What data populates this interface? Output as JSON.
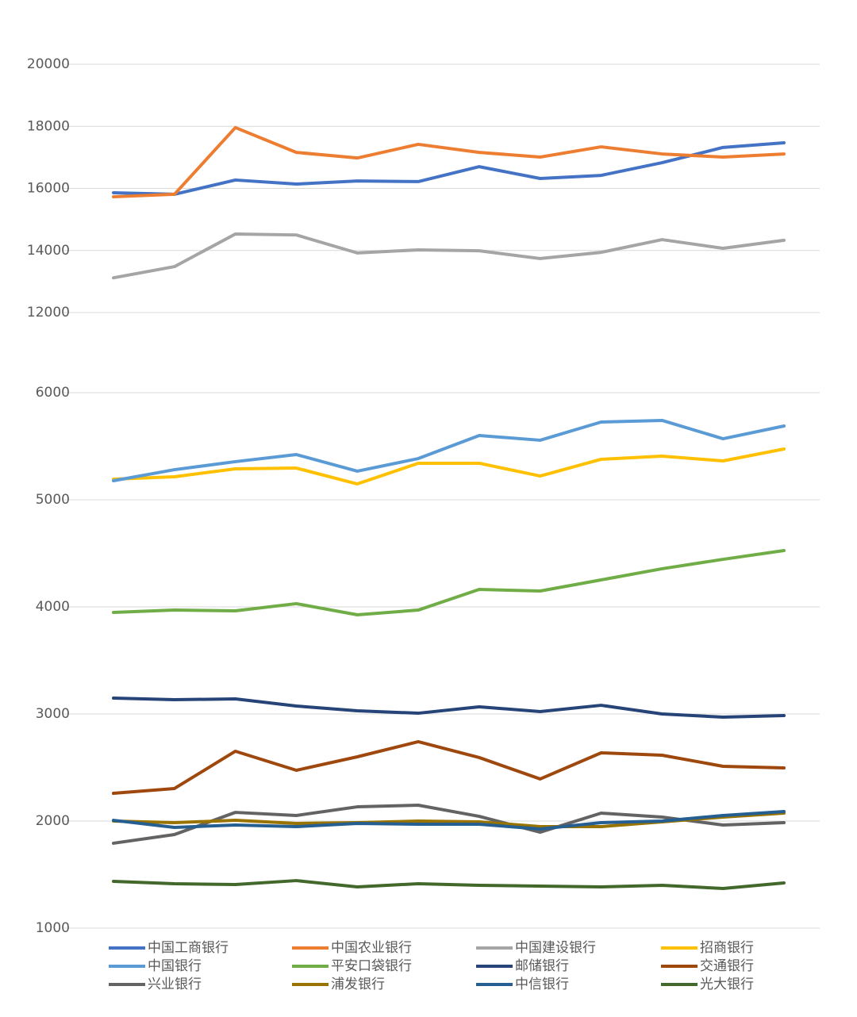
{
  "chart_data": [
    {
      "type": "line",
      "categories": [
        null,
        null,
        null,
        null,
        null,
        null,
        null,
        null,
        null,
        null,
        null,
        null
      ],
      "ylim": [
        12000,
        20000
      ],
      "yticks": [
        12000,
        14000,
        16000,
        18000,
        20000
      ],
      "grid": true,
      "series": [
        {
          "name": "中国工商银行",
          "color": "#4472c4",
          "values": [
            15860,
            15810,
            16270,
            16140,
            16240,
            16220,
            16700,
            16320,
            16420,
            16830,
            17320,
            17470
          ]
        },
        {
          "name": "中国农业银行",
          "color": "#ed7d31",
          "values": [
            15730,
            15810,
            17960,
            17160,
            16980,
            17420,
            17160,
            17010,
            17340,
            17110,
            17010,
            17110
          ]
        },
        {
          "name": "中国建设银行",
          "color": "#a5a5a5",
          "values": [
            13120,
            13480,
            14530,
            14500,
            13920,
            14020,
            13990,
            13740,
            13940,
            14350,
            14070,
            14330
          ]
        }
      ]
    },
    {
      "type": "line",
      "categories": [
        null,
        null,
        null,
        null,
        null,
        null,
        null,
        null,
        null,
        null,
        null,
        null
      ],
      "ylim": [
        1000,
        6000
      ],
      "yticks": [
        1000,
        2000,
        3000,
        4000,
        5000,
        6000
      ],
      "grid": true,
      "series": [
        {
          "name": "招商银行",
          "color": "#ffc000",
          "values": [
            5193,
            5215,
            5289,
            5296,
            5148,
            5341,
            5341,
            5222,
            5378,
            5407,
            5363,
            5474
          ]
        },
        {
          "name": "中国银行",
          "color": "#5b9bd5",
          "values": [
            5178,
            5281,
            5356,
            5422,
            5267,
            5385,
            5600,
            5556,
            5726,
            5741,
            5570,
            5689
          ]
        },
        {
          "name": "平安口袋银行",
          "color": "#70ad47",
          "values": [
            3948,
            3970,
            3963,
            4030,
            3926,
            3970,
            4163,
            4148,
            4252,
            4356,
            4444,
            4526
          ]
        },
        {
          "name": "邮储银行",
          "color": "#264478",
          "values": [
            3148,
            3133,
            3141,
            3074,
            3030,
            3007,
            3067,
            3022,
            3081,
            3000,
            2970,
            2985
          ]
        },
        {
          "name": "交通银行",
          "color": "#9e480e",
          "values": [
            2259,
            2304,
            2652,
            2474,
            2600,
            2741,
            2593,
            2393,
            2637,
            2615,
            2511,
            2496
          ]
        },
        {
          "name": "兴业银行",
          "color": "#636363",
          "values": [
            1793,
            1874,
            2081,
            2052,
            2133,
            2148,
            2044,
            1896,
            2074,
            2037,
            1963,
            1985
          ]
        },
        {
          "name": "浦发银行",
          "color": "#997300",
          "values": [
            2000,
            1985,
            2007,
            1978,
            1985,
            2000,
            1993,
            1948,
            1948,
            1993,
            2037,
            2074
          ]
        },
        {
          "name": "中信银行",
          "color": "#255e91",
          "values": [
            2007,
            1941,
            1963,
            1948,
            1978,
            1970,
            1970,
            1926,
            1985,
            2000,
            2052,
            2089
          ]
        },
        {
          "name": "光大银行",
          "color": "#43682b",
          "values": [
            1437,
            1415,
            1407,
            1444,
            1385,
            1415,
            1400,
            1393,
            1385,
            1400,
            1370,
            1422
          ]
        }
      ]
    }
  ]
}
